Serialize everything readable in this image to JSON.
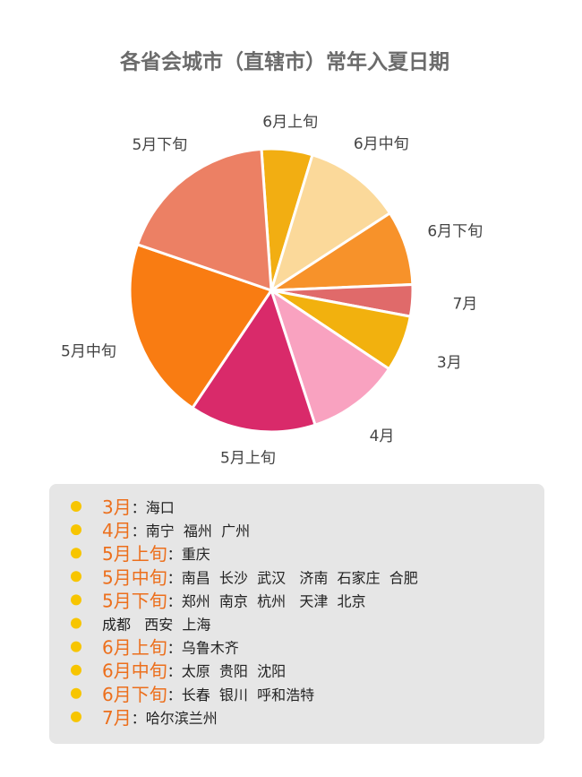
{
  "chart_data": {
    "type": "pie",
    "title": "各省会城市（直辖市）常年入夏日期",
    "categories": [
      "6月上旬",
      "6月中旬",
      "6月下旬",
      "7月",
      "3月",
      "4月",
      "5月上旬",
      "5月中旬",
      "5月下旬"
    ],
    "values": [
      5.8,
      11.1,
      8.5,
      3.6,
      6.4,
      10.6,
      14.4,
      20.8,
      18.6
    ],
    "colors": [
      "#f2ae12",
      "#fbd99a",
      "#f7922a",
      "#e06a6a",
      "#f2b10e",
      "#f9a2c0",
      "#d92a6a",
      "#f97c12",
      "#ec8064"
    ]
  },
  "city_list": {
    "separator": "：",
    "rows": [
      {
        "label": "3月",
        "cities": "海口"
      },
      {
        "label": "4月",
        "cities": "南宁  福州  广州"
      },
      {
        "label": "5月上旬",
        "cities": "重庆"
      },
      {
        "label": "5月中旬",
        "cities": "南昌  长沙  武汉   济南  石家庄  合肥"
      },
      {
        "label": "5月下旬",
        "cities": "郑州  南京  杭州   天津  北京"
      },
      {
        "cities": "成都   西安  上海"
      },
      {
        "label": "6月上旬",
        "cities": "乌鲁木齐"
      },
      {
        "label": "6月中旬",
        "cities": "太原  贵阳  沈阳"
      },
      {
        "label": "6月下旬",
        "cities": "长春  银川  呼和浩特"
      },
      {
        "label": "7月",
        "cities": "哈尔滨兰州"
      }
    ]
  }
}
